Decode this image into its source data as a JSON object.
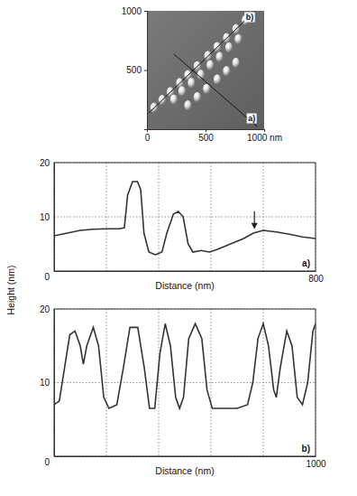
{
  "chart_data": [
    {
      "type": "scatter",
      "color": "#e6e6e6",
      "xlim": [
        0,
        1000
      ],
      "ylim": [
        0,
        1000
      ],
      "xticks": [
        0,
        500,
        {
          "value": 1000,
          "label": "1000 nm"
        }
      ],
      "yticks": [
        500,
        1000
      ],
      "grid": false,
      "x": [
        60,
        130,
        200,
        280,
        350,
        430,
        520,
        600,
        680,
        760,
        840,
        230,
        300,
        380,
        460,
        540,
        620,
        700,
        780,
        350,
        430,
        510,
        600,
        680,
        760
      ],
      "y": [
        180,
        245,
        313,
        389,
        455,
        531,
        617,
        693,
        769,
        845,
        920,
        250,
        320,
        390,
        460,
        540,
        610,
        690,
        760,
        200,
        270,
        340,
        420,
        490,
        560
      ],
      "cuts": [
        {
          "label": "a)",
          "x": [
            230,
            940
          ],
          "y": [
            634,
            23
          ]
        },
        {
          "label": "b)",
          "x": [
            15,
            923
          ],
          "y": [
            137,
            1000
          ]
        }
      ]
    },
    {
      "type": "line",
      "label": "a)",
      "color": "#333333",
      "xlabel": "Distance (nm)",
      "xlim": [
        0,
        800
      ],
      "ylim": [
        0,
        20
      ],
      "xticks": [
        {
          "value": 0,
          "label": null
        },
        {
          "value": 160,
          "label": null
        },
        {
          "value": 320,
          "label": null
        },
        {
          "value": 480,
          "label": null
        },
        {
          "value": 640,
          "label": null
        },
        800
      ],
      "yticks": [
        0,
        10,
        20
      ],
      "grid": true,
      "x": [
        0,
        40,
        80,
        120,
        160,
        200,
        215,
        225,
        240,
        255,
        265,
        275,
        290,
        310,
        330,
        345,
        365,
        380,
        395,
        410,
        425,
        450,
        475,
        500,
        540,
        580,
        610,
        640,
        680,
        720,
        760,
        800
      ],
      "y": [
        6.5,
        7,
        7.5,
        7.7,
        7.8,
        7.8,
        8,
        14,
        16.5,
        16.5,
        15,
        7,
        3.5,
        3,
        3.5,
        7,
        10.5,
        11,
        10,
        5,
        3.5,
        3.8,
        3.5,
        4,
        5,
        6,
        7,
        7.5,
        7.2,
        6.8,
        6.3,
        6
      ],
      "arrows": [
        {
          "x": 613,
          "y": 7.2
        }
      ]
    },
    {
      "type": "line",
      "label": "b)",
      "color": "#333333",
      "xlabel": "Distance (nm)",
      "ylabel": "Height (nm)",
      "xlim": [
        0,
        1000
      ],
      "ylim": [
        0,
        20
      ],
      "xticks": [
        {
          "value": 0,
          "label": null
        },
        {
          "value": 200,
          "label": null
        },
        {
          "value": 400,
          "label": null
        },
        {
          "value": 600,
          "label": null
        },
        {
          "value": 800,
          "label": null
        },
        1000
      ],
      "yticks": [
        0,
        10,
        20
      ],
      "grid": true,
      "x": [
        0,
        20,
        40,
        60,
        80,
        100,
        112,
        125,
        150,
        170,
        190,
        210,
        240,
        265,
        290,
        320,
        345,
        365,
        385,
        405,
        425,
        445,
        465,
        480,
        495,
        515,
        540,
        565,
        585,
        605,
        650,
        700,
        740,
        760,
        780,
        800,
        820,
        840,
        850,
        865,
        890,
        910,
        930,
        950,
        970,
        990,
        1000
      ],
      "y": [
        7,
        7.5,
        12,
        16.5,
        17,
        15,
        12.5,
        15,
        17.5,
        15,
        8,
        6.5,
        7,
        12,
        17.5,
        17.5,
        12,
        6.5,
        6.5,
        14,
        18,
        15,
        8,
        6.5,
        8,
        16,
        18,
        16,
        9,
        6.5,
        6.5,
        6.5,
        7,
        10,
        16,
        18,
        15,
        9,
        8,
        12,
        17,
        15,
        8,
        7,
        10,
        17,
        18
      ]
    }
  ]
}
